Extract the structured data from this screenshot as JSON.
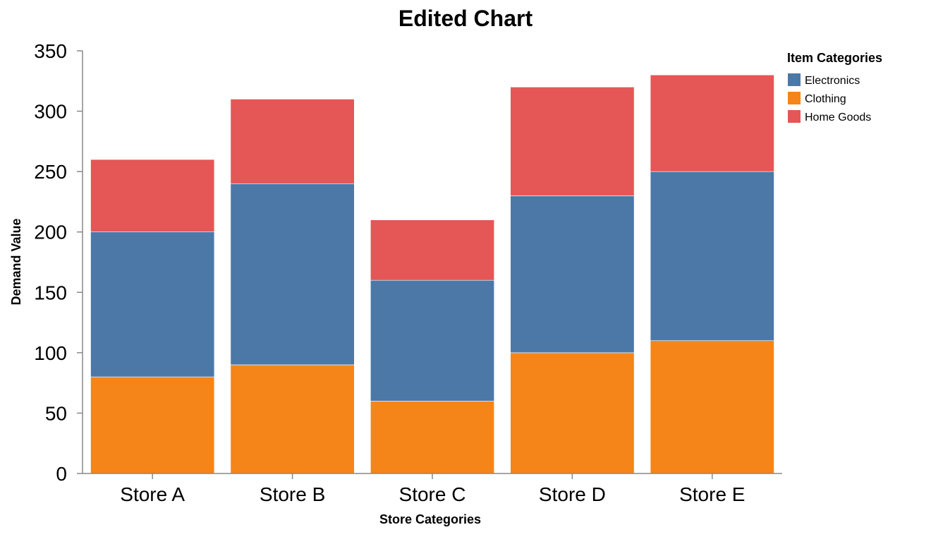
{
  "chart_data": {
    "type": "bar",
    "stacked": true,
    "title": "Edited Chart",
    "xlabel": "Store Categories",
    "ylabel": "Demand Value",
    "ylim": [
      0,
      350
    ],
    "yticks": [
      0,
      50,
      100,
      150,
      200,
      250,
      300,
      350
    ],
    "grid": false,
    "legend_title": "Item Categories",
    "legend_placement": "top-right",
    "categories": [
      "Store A",
      "Store B",
      "Store C",
      "Store D",
      "Store E"
    ],
    "series": [
      {
        "name": "Electronics",
        "color": "#4c78a8",
        "values": [
          120,
          150,
          100,
          130,
          140
        ]
      },
      {
        "name": "Clothing",
        "color": "#f58518",
        "values": [
          80,
          90,
          60,
          100,
          110
        ]
      },
      {
        "name": "Home Goods",
        "color": "#e45756",
        "values": [
          60,
          70,
          50,
          90,
          80
        ]
      }
    ],
    "stack_order": [
      "Clothing",
      "Electronics",
      "Home Goods"
    ]
  }
}
